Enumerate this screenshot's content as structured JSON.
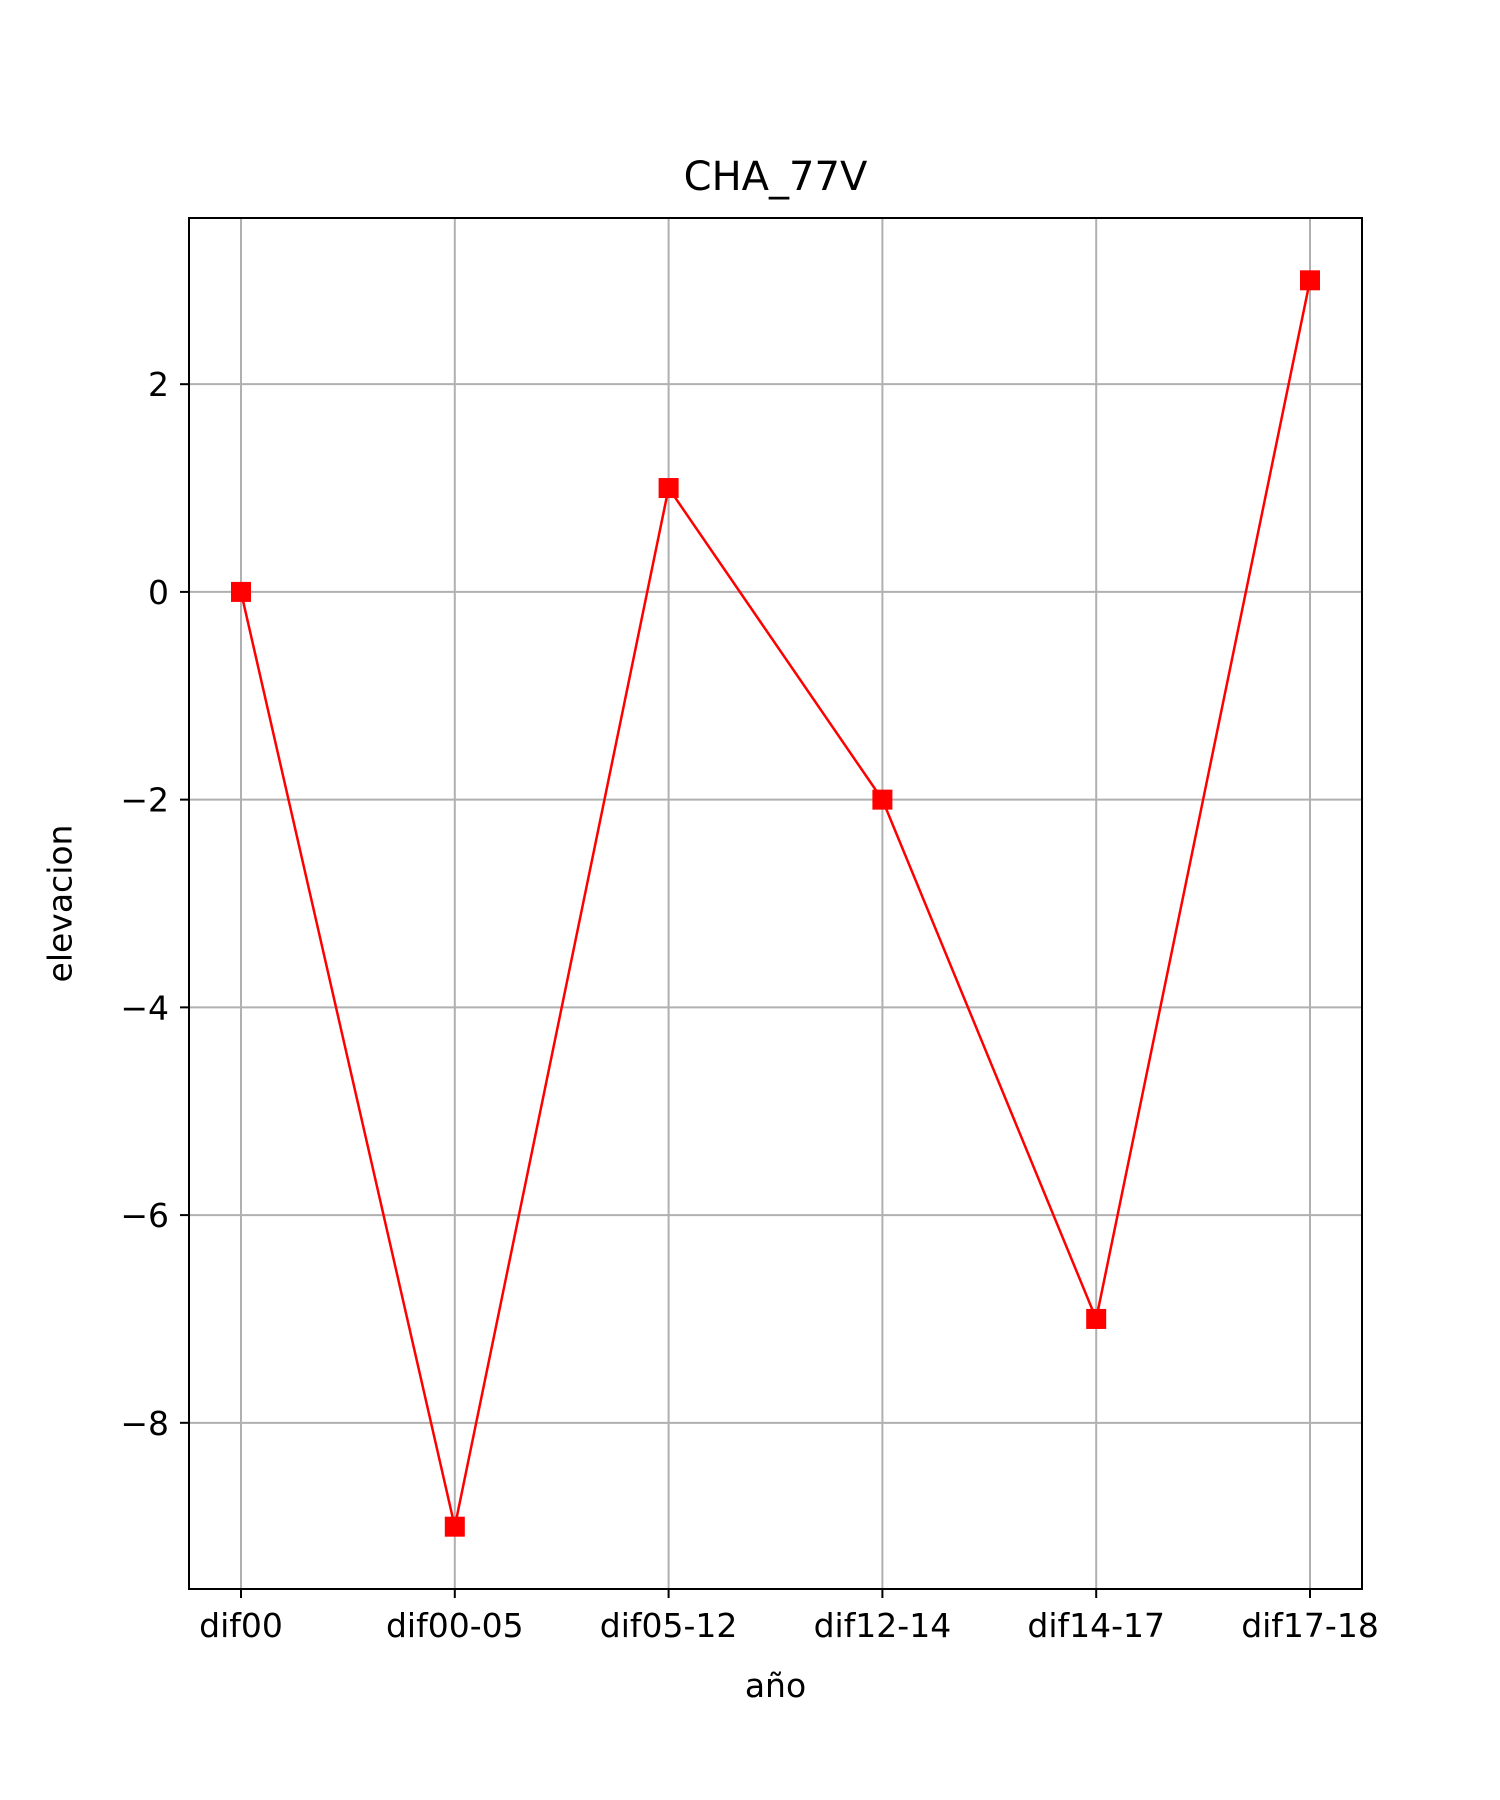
{
  "chart_data": {
    "type": "line",
    "title": "CHA_77V",
    "xlabel": "año",
    "ylabel": "elevacion",
    "categories": [
      "dif00",
      "dif00-05",
      "dif05-12",
      "dif12-14",
      "dif14-17",
      "dif17-18"
    ],
    "series": [
      {
        "values": [
          0,
          -9,
          1,
          -2,
          -7,
          3
        ],
        "color": "#ff0000",
        "marker": "square"
      }
    ],
    "ylim": [
      -9.6,
      3.6
    ],
    "yticks": [
      2,
      0,
      -2,
      -4,
      -6,
      -8
    ],
    "ytick_labels": [
      "2",
      "0",
      "−2",
      "−4",
      "−6",
      "−8"
    ],
    "grid": true,
    "grid_color": "#b0b0b0",
    "axis_color": "#000000"
  }
}
